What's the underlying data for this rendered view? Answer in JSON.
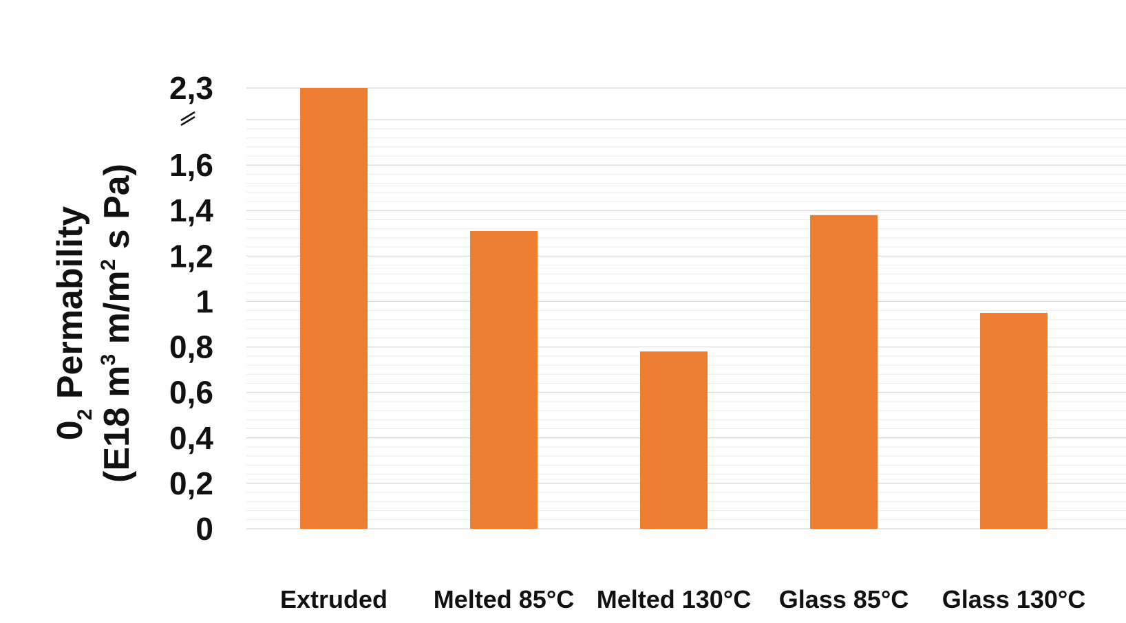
{
  "chart_data": {
    "type": "bar",
    "title": "",
    "categories": [
      "Extruded",
      "Melted 85°C",
      "Melted 130°C",
      "Glass 85°C",
      "Glass 130°C"
    ],
    "values": [
      2.3,
      1.31,
      0.78,
      1.38,
      0.95
    ],
    "bar_color": "#ED7D31",
    "ylabel": {
      "line1_prefix": "0",
      "line1_sub": "2",
      "line1_suffix": " Permability",
      "line2_prefix": "(E18  m",
      "line2_sup1": "3",
      "line2_mid": " m/m",
      "line2_sup2": "2",
      "line2_suffix": " s Pa)"
    },
    "yticks": [
      {
        "label": "0",
        "value": 0
      },
      {
        "label": "0,2",
        "value": 0.2
      },
      {
        "label": "0,4",
        "value": 0.4
      },
      {
        "label": "0,6",
        "value": 0.6
      },
      {
        "label": "0,8",
        "value": 0.8
      },
      {
        "label": "1",
        "value": 1.0
      },
      {
        "label": "1,2",
        "value": 1.2
      },
      {
        "label": "1,4",
        "value": 1.4
      },
      {
        "label": "1,6",
        "value": 1.6
      },
      {
        "label": "2,3",
        "value": 2.3
      }
    ],
    "axis_break": {
      "from": 1.8,
      "to": 2.3,
      "symbol": "="
    },
    "ylim": [
      0,
      2.3
    ],
    "grid": true,
    "minor_grid": true,
    "legend": "none"
  }
}
